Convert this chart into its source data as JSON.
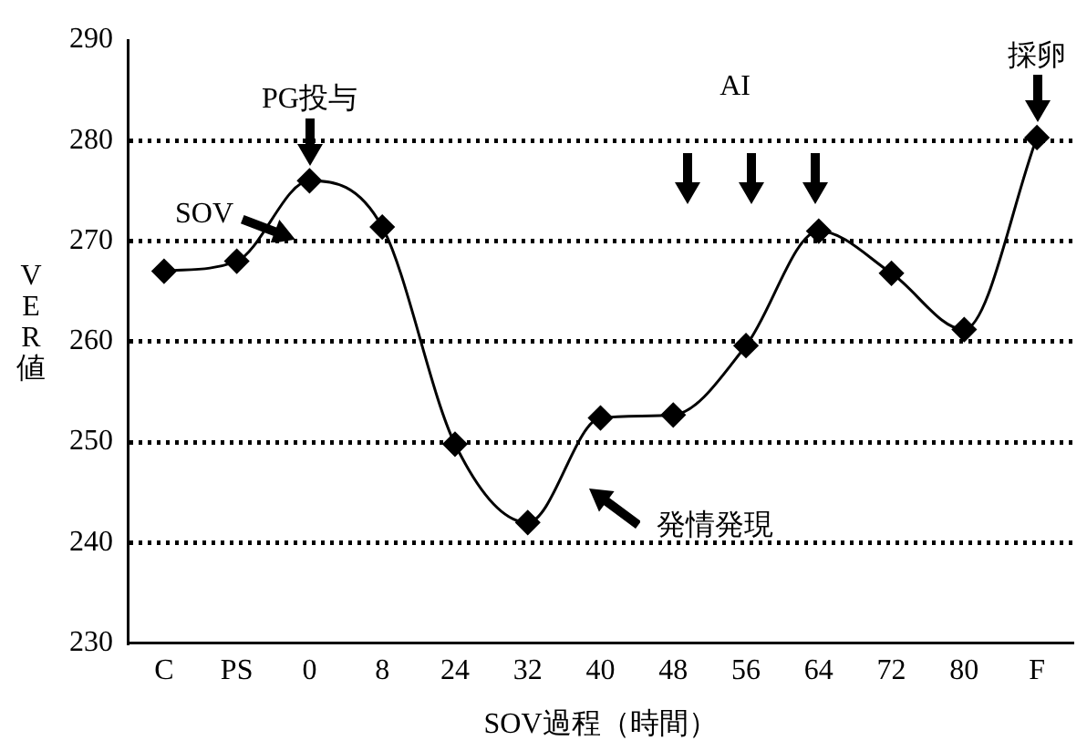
{
  "chart_data": {
    "type": "line",
    "xlabel": "SOV過程（時間）",
    "ylabel": "VER値",
    "categories": [
      "C",
      "PS",
      "0",
      "8",
      "24",
      "32",
      "40",
      "48",
      "56",
      "64",
      "72",
      "80",
      "F"
    ],
    "series": [
      {
        "color": "#000000",
        "values": [
          267,
          268,
          276,
          271.4,
          249.8,
          242,
          252.4,
          252.7,
          259.6,
          271,
          266.8,
          261.2,
          280.3
        ]
      }
    ],
    "ylim": [
      230,
      290
    ],
    "yticks": [
      230,
      240,
      250,
      260,
      270,
      280,
      290
    ],
    "grid": "y",
    "legend": false,
    "marker": "diamond",
    "line_style": "solid",
    "annotations": [
      "SOV",
      {
        "text": "PG投与",
        "x": "0",
        "y": 276
      },
      "AI",
      "発情発現",
      {
        "text": "採卵",
        "x": "F",
        "y": 280.3
      }
    ]
  }
}
